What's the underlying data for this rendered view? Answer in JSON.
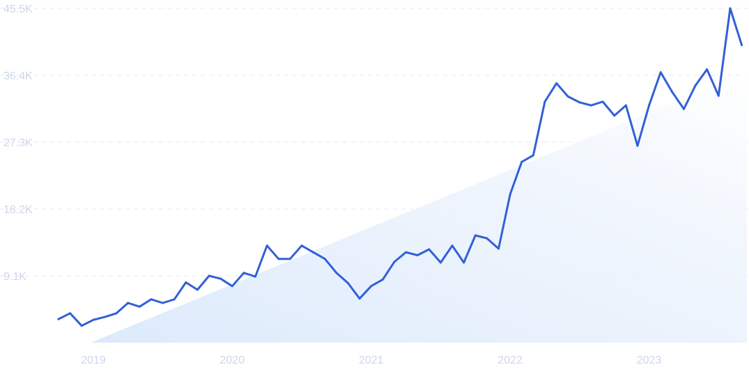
{
  "chart_data": {
    "type": "line",
    "title": "",
    "xlabel": "",
    "ylabel": "",
    "ylim": [
      0,
      45500
    ],
    "y_ticks": [
      {
        "value": 9100,
        "label": "9.1K"
      },
      {
        "value": 18200,
        "label": "18.2K"
      },
      {
        "value": 27300,
        "label": "27.3K"
      },
      {
        "value": 36400,
        "label": "36.4K"
      },
      {
        "value": 45500,
        "label": "45.5K"
      }
    ],
    "x_ticks": [
      {
        "value": "2019-01",
        "label": "2019"
      },
      {
        "value": "2020-01",
        "label": "2020"
      },
      {
        "value": "2021-01",
        "label": "2021"
      },
      {
        "value": "2022-01",
        "label": "2022"
      },
      {
        "value": "2023-01",
        "label": "2023"
      }
    ],
    "grid": true,
    "line_color": "#3160d8",
    "trend_fill_color": "#dbe9fb",
    "series": [
      {
        "x": [
          "2018-10",
          "2018-11",
          "2018-12",
          "2019-01",
          "2019-02",
          "2019-03",
          "2019-04",
          "2019-05",
          "2019-06",
          "2019-07",
          "2019-08",
          "2019-09",
          "2019-10",
          "2019-11",
          "2019-12",
          "2020-01",
          "2020-02",
          "2020-03",
          "2020-04",
          "2020-05",
          "2020-06",
          "2020-07",
          "2020-08",
          "2020-09",
          "2020-10",
          "2020-11",
          "2020-12",
          "2021-01",
          "2021-02",
          "2021-03",
          "2021-04",
          "2021-05",
          "2021-06",
          "2021-07",
          "2021-08",
          "2021-09",
          "2021-10",
          "2021-11",
          "2021-12",
          "2022-01",
          "2022-02",
          "2022-03",
          "2022-04",
          "2022-05",
          "2022-06",
          "2022-07",
          "2022-08",
          "2022-09",
          "2022-10",
          "2022-11",
          "2022-12",
          "2023-01",
          "2023-02",
          "2023-03",
          "2023-04",
          "2023-05",
          "2023-06",
          "2023-07",
          "2023-08",
          "2023-09"
        ],
        "values": [
          3200,
          4000,
          2300,
          3100,
          3500,
          4000,
          5400,
          4900,
          5900,
          5400,
          5900,
          8200,
          7200,
          9100,
          8700,
          7700,
          9500,
          9000,
          13200,
          11400,
          11400,
          13200,
          12300,
          11400,
          9500,
          8100,
          6000,
          7700,
          8600,
          11000,
          12300,
          11900,
          12700,
          10900,
          13200,
          10900,
          14600,
          14200,
          12800,
          20200,
          24600,
          25500,
          32800,
          35300,
          33500,
          32700,
          32300,
          32800,
          30900,
          32300,
          26800,
          32300,
          36800,
          34100,
          31800,
          35000,
          37200,
          33600,
          45500,
          40500
        ]
      }
    ]
  }
}
